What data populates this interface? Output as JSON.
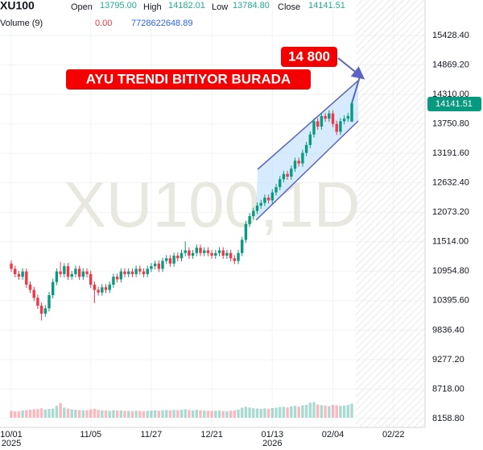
{
  "chart_data": {
    "type": "candlestick",
    "symbol": "XU100",
    "legend": [
      {
        "label": "Open",
        "value": "13795.00"
      },
      {
        "label": "High",
        "value": "14182.01"
      },
      {
        "label": "Low",
        "value": "13784.80"
      },
      {
        "label": "Close",
        "value": "14141.51"
      }
    ],
    "volume_legend": {
      "label": "Volume (9)",
      "ma": "0.00",
      "value": "7728622648.89"
    },
    "watermark": "XU100,1D",
    "annotations": [
      "AYU TRENDI BITIYOR BURADA",
      "14 800"
    ],
    "up_color": "#089981",
    "down_color": "#f23645",
    "grid": true,
    "open": [
      11100,
      11000,
      10900,
      10850,
      10950,
      10700,
      10600,
      10450,
      10300,
      10150,
      10250,
      10500,
      10750,
      10950,
      10900,
      11050,
      10850,
      10900,
      11000,
      10850,
      10950,
      10900,
      10700,
      10600,
      10550,
      10650,
      10600,
      10700,
      10850,
      10800,
      10950,
      10900,
      10950,
      10900,
      11000,
      10950,
      10900,
      11000,
      11050,
      11100,
      11000,
      11150,
      11200,
      11100,
      11250,
      11200,
      11300,
      11350,
      11250,
      11300,
      11400,
      11300,
      11350,
      11300,
      11250,
      11300,
      11350,
      11250,
      11300,
      11200,
      11150,
      11300,
      11550,
      11850,
      12000,
      12100,
      12200,
      12250,
      12350,
      12300,
      12450,
      12550,
      12700,
      12800,
      12750,
      12900,
      13050,
      13000,
      13200,
      13350,
      13550,
      13800,
      13700,
      13900,
      13850,
      13950,
      13750,
      13600,
      13800,
      13850,
      13795
    ],
    "high": [
      11160,
      11060,
      10960,
      11010,
      11010,
      10760,
      10660,
      10510,
      10360,
      10310,
      10560,
      10810,
      11010,
      11130,
      11110,
      11110,
      10960,
      11060,
      11060,
      11010,
      11010,
      10960,
      10760,
      10660,
      10710,
      10710,
      10760,
      10910,
      10910,
      11010,
      11010,
      11010,
      11010,
      11060,
      11060,
      11010,
      11060,
      11110,
      11160,
      11160,
      11210,
      11260,
      11260,
      11310,
      11310,
      11360,
      11520,
      11410,
      11360,
      11460,
      11460,
      11410,
      11410,
      11360,
      11360,
      11410,
      11410,
      11360,
      11360,
      11260,
      11360,
      11610,
      11910,
      12060,
      12160,
      12260,
      12310,
      12410,
      12410,
      12510,
      12610,
      12760,
      12860,
      12860,
      12960,
      13110,
      13110,
      13260,
      13410,
      13610,
      13860,
      13860,
      13960,
      13960,
      14010,
      14010,
      13810,
      13860,
      13910,
      13960,
      14182.01
    ],
    "low": [
      10940,
      10840,
      10790,
      10790,
      10640,
      10540,
      10390,
      10240,
      10020,
      10090,
      10190,
      10440,
      10690,
      10840,
      10840,
      10790,
      10790,
      10840,
      10790,
      10790,
      10840,
      10640,
      10350,
      10490,
      10490,
      10540,
      10540,
      10640,
      10740,
      10740,
      10840,
      10840,
      10840,
      10840,
      10890,
      10840,
      10840,
      10940,
      10990,
      10940,
      10940,
      11090,
      11040,
      11040,
      11140,
      11140,
      11240,
      11190,
      11190,
      11240,
      11240,
      11240,
      11240,
      11190,
      11190,
      11240,
      11190,
      11190,
      11140,
      11090,
      11090,
      11240,
      11490,
      11790,
      11940,
      12040,
      12140,
      12190,
      12240,
      12240,
      12390,
      12490,
      12640,
      12690,
      12690,
      12840,
      12940,
      12940,
      13140,
      13290,
      13490,
      13640,
      13640,
      13790,
      13790,
      13690,
      13540,
      13540,
      13740,
      13790,
      13784.8
    ],
    "close": [
      11000,
      10900,
      10850,
      10950,
      10700,
      10600,
      10450,
      10300,
      10150,
      10250,
      10500,
      10750,
      10950,
      10900,
      11050,
      10850,
      10900,
      11000,
      10850,
      10950,
      10900,
      10700,
      10600,
      10550,
      10650,
      10600,
      10700,
      10850,
      10800,
      10950,
      10900,
      10950,
      10900,
      11000,
      10950,
      10900,
      11000,
      11050,
      11100,
      11000,
      11150,
      11200,
      11100,
      11250,
      11200,
      11300,
      11350,
      11250,
      11300,
      11400,
      11300,
      11350,
      11300,
      11250,
      11300,
      11350,
      11250,
      11300,
      11200,
      11150,
      11300,
      11550,
      11850,
      12000,
      12100,
      12200,
      12250,
      12350,
      12300,
      12450,
      12550,
      12700,
      12800,
      12750,
      12900,
      13050,
      13000,
      13200,
      13350,
      13550,
      13800,
      13700,
      13900,
      13850,
      13950,
      13750,
      13600,
      13800,
      13850,
      13900,
      14141.51
    ],
    "volume": [
      3800000000.0,
      3500000000.0,
      3600000000.0,
      4000000000.0,
      4200000000.0,
      4400000000.0,
      4600000000.0,
      4800000000.0,
      5200000000.0,
      4500000000.0,
      4800000000.0,
      5000000000.0,
      6500000000.0,
      8000000000.0,
      5500000000.0,
      5000000000.0,
      4600000000.0,
      4400000000.0,
      4200000000.0,
      4000000000.0,
      4100000000.0,
      4600000000.0,
      4900000000.0,
      4300000000.0,
      4000000000.0,
      3900000000.0,
      3800000000.0,
      4100000000.0,
      4000000000.0,
      3900000000.0,
      3800000000.0,
      3700000000.0,
      3600000000.0,
      3800000000.0,
      3700000000.0,
      3600000000.0,
      3800000000.0,
      3900000000.0,
      4000000000.0,
      3800000000.0,
      4100000000.0,
      4200000000.0,
      4000000000.0,
      4300000000.0,
      4100000000.0,
      4400000000.0,
      4600000000.0,
      4200000000.0,
      4000000000.0,
      4300000000.0,
      4100000000.0,
      3900000000.0,
      3800000000.0,
      3700000000.0,
      3800000000.0,
      3900000000.0,
      3700000000.0,
      3600000000.0,
      3800000000.0,
      4000000000.0,
      4500000000.0,
      5500000000.0,
      6000000000.0,
      5600000000.0,
      5200000000.0,
      5000000000.0,
      4800000000.0,
      5100000000.0,
      4900000000.0,
      5300000000.0,
      5500000000.0,
      5800000000.0,
      6000000000.0,
      5600000000.0,
      6200000000.0,
      6500000000.0,
      6100000000.0,
      6800000000.0,
      7000000000.0,
      8200000000.0,
      8500000000.0,
      7200000000.0,
      6900000000.0,
      6600000000.0,
      6400000000.0,
      7000000000.0,
      6800000000.0,
      6500000000.0,
      6700000000.0,
      7000000000.0,
      7728622648.89
    ],
    "volume_ylim": [
      0,
      22000000000
    ],
    "last_price": "14141.51",
    "xlim": [
      -2.98,
      109.36
    ],
    "xticks": [
      {
        "value": 0,
        "label": "10/01"
      },
      {
        "value": 21,
        "label": "11/05"
      },
      {
        "value": 37,
        "label": "11/27"
      },
      {
        "value": 53,
        "label": "12/21"
      },
      {
        "value": 69,
        "label": "01/13"
      },
      {
        "value": 85,
        "label": "02/04"
      },
      {
        "value": 101,
        "label": "02/22"
      }
    ],
    "year_labels": [
      {
        "value": 0,
        "label": "2025"
      },
      {
        "value": 69,
        "label": "2026"
      }
    ],
    "ylim": [
      7990.2,
      16101.8
    ],
    "yticks": [
      {
        "value": 8158.8,
        "label": "8158.80"
      },
      {
        "value": 8718,
        "label": "8718.00"
      },
      {
        "value": 9277.2,
        "label": "9277.20"
      },
      {
        "value": 9836.4,
        "label": "9836.40"
      },
      {
        "value": 10395.6,
        "label": "10395.60"
      },
      {
        "value": 10954.8,
        "label": "10954.80"
      },
      {
        "value": 11514,
        "label": "11514.00"
      },
      {
        "value": 12073.2,
        "label": "12073.20"
      },
      {
        "value": 12632.4,
        "label": "12632.40"
      },
      {
        "value": 13191.6,
        "label": "13191.60"
      },
      {
        "value": 13750.8,
        "label": "13750.80"
      },
      {
        "value": 14310,
        "label": "14310.00"
      },
      {
        "value": 14869.2,
        "label": "14869.20"
      },
      {
        "value": 15428.4,
        "label": "15428.40"
      }
    ]
  }
}
